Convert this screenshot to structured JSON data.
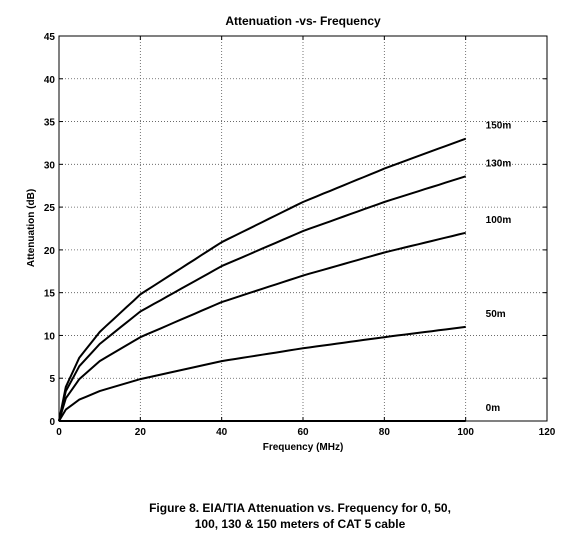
{
  "chart_data": {
    "type": "line",
    "title": "Attenuation -vs- Frequency",
    "xlabel": "Frequency (MHz)",
    "ylabel": "Attenuation (dB)",
    "xlim": [
      0,
      120
    ],
    "ylim": [
      0,
      45
    ],
    "xticks": [
      0,
      20,
      40,
      60,
      80,
      100,
      120
    ],
    "yticks": [
      0,
      5,
      10,
      15,
      20,
      25,
      30,
      35,
      40,
      45
    ],
    "grid": true,
    "x": [
      0,
      1,
      5,
      10,
      20,
      40,
      60,
      80,
      100
    ],
    "series": [
      {
        "name": "150m",
        "values": [
          0,
          3.3,
          7.4,
          10.4,
          14.8,
          20.9,
          25.6,
          29.5,
          33.0
        ]
      },
      {
        "name": "130m",
        "values": [
          0,
          2.9,
          6.4,
          9.0,
          12.8,
          18.1,
          22.2,
          25.6,
          28.6
        ]
      },
      {
        "name": "100m",
        "values": [
          0,
          2.2,
          4.9,
          7.0,
          9.8,
          13.9,
          17.0,
          19.7,
          22.0
        ]
      },
      {
        "name": "50m",
        "values": [
          0,
          1.1,
          2.5,
          3.5,
          4.9,
          7.0,
          8.5,
          9.8,
          11.0
        ]
      },
      {
        "name": "0m",
        "values": [
          0,
          0,
          0,
          0,
          0,
          0,
          0,
          0,
          0
        ]
      }
    ]
  },
  "caption": {
    "line1": "Figure 8. EIA/TIA Attenuation vs. Frequency for 0, 50,",
    "line2": "100, 130 & 150 meters of CAT 5 cable"
  }
}
